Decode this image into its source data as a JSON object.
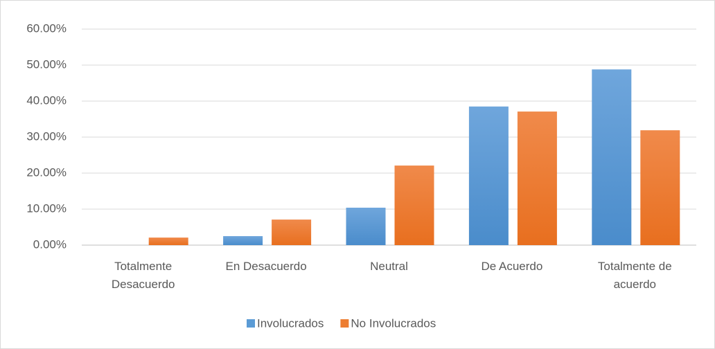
{
  "chart_data": {
    "type": "bar",
    "categories": [
      "Totalmente Desacuerdo",
      "En Desacuerdo",
      "Neutral",
      "De Acuerdo",
      "Totalmente de acuerdo"
    ],
    "series": [
      {
        "name": "Involucrados",
        "color": "#5b9bd5",
        "values": [
          0,
          2.5,
          10.4,
          38.5,
          48.8
        ]
      },
      {
        "name": "No Involucrados",
        "color": "#ed7d31",
        "values": [
          2.1,
          7.1,
          22.1,
          37.1,
          31.9
        ]
      }
    ],
    "ylim": [
      0,
      60
    ],
    "yticks": [
      {
        "value": 0,
        "label": "0.00%"
      },
      {
        "value": 10,
        "label": "10.00%"
      },
      {
        "value": 20,
        "label": "20.00%"
      },
      {
        "value": 30,
        "label": "30.00%"
      },
      {
        "value": 40,
        "label": "40.00%"
      },
      {
        "value": 50,
        "label": "50.00%"
      },
      {
        "value": 60,
        "label": "60.00%"
      }
    ],
    "grid": true,
    "legend": "bottom"
  }
}
